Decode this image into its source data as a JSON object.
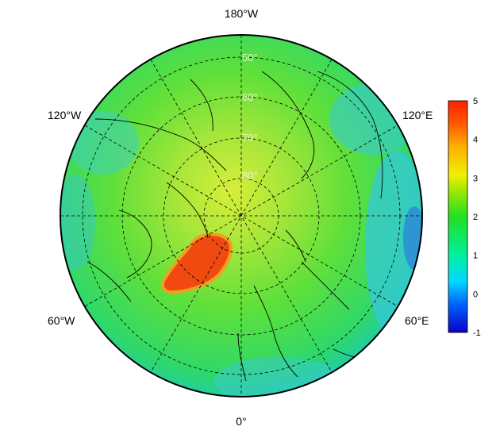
{
  "map": {
    "projection": "north polar stereographic",
    "lat_labels": [
      "50°",
      "60°",
      "70°",
      "80°"
    ],
    "lon_labels": {
      "top": "180°W",
      "upper_left": "120°W",
      "upper_right": "120°E",
      "lower_left": "60°W",
      "lower_right": "60°E",
      "bottom": "0°"
    }
  },
  "colorbar": {
    "min": -1,
    "max": 5,
    "ticks": [
      "-1",
      "0",
      "1",
      "2",
      "3",
      "4",
      "5"
    ],
    "colors": [
      "#0a00c8",
      "#0060ff",
      "#00d8ff",
      "#22e022",
      "#f0f000",
      "#ff5a00",
      "#ff2000"
    ]
  }
}
